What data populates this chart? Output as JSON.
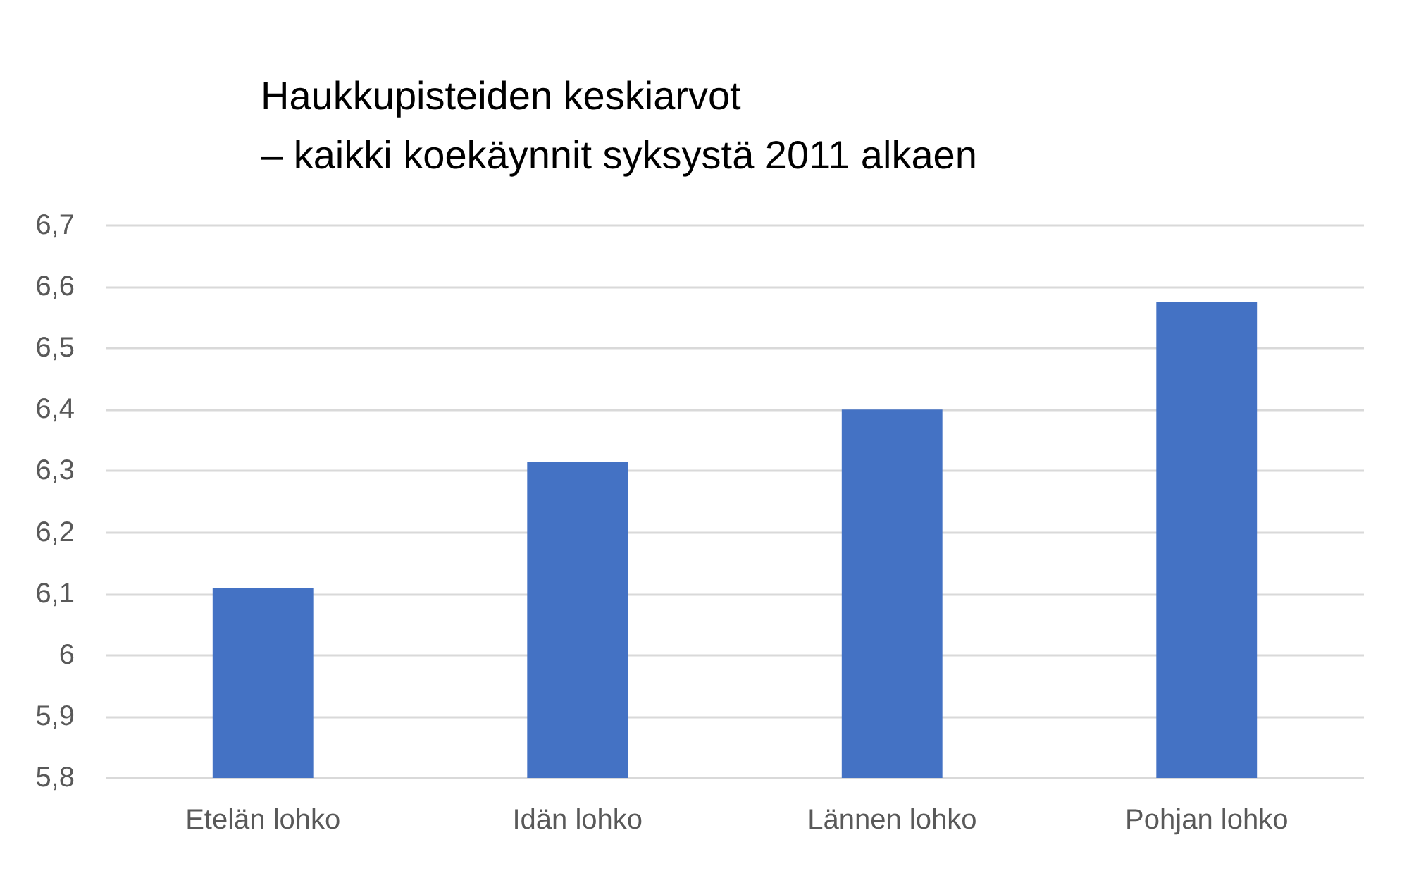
{
  "chart_data": {
    "type": "bar",
    "title": "Haukkupisteiden keskiarvot\n– kaikki koekäynnit syksystä 2011 alkaen",
    "categories": [
      "Etelän lohko",
      "Idän lohko",
      "Lännen lohko",
      "Pohjan lohko"
    ],
    "values": [
      6.11,
      6.315,
      6.4,
      6.575
    ],
    "color": "#4472c4",
    "ylim": [
      5.8,
      6.7
    ],
    "yticks": [
      {
        "value": 5.8,
        "label": "5,8"
      },
      {
        "value": 5.9,
        "label": "5,9"
      },
      6,
      {
        "value": 6.1,
        "label": "6,1"
      },
      {
        "value": 6.2,
        "label": "6,2"
      },
      {
        "value": 6.3,
        "label": "6,3"
      },
      {
        "value": 6.4,
        "label": "6,4"
      },
      {
        "value": 6.5,
        "label": "6,5"
      },
      {
        "value": 6.6,
        "label": "6,6"
      },
      {
        "value": 6.7,
        "label": "6,7"
      }
    ],
    "grid": "y"
  }
}
